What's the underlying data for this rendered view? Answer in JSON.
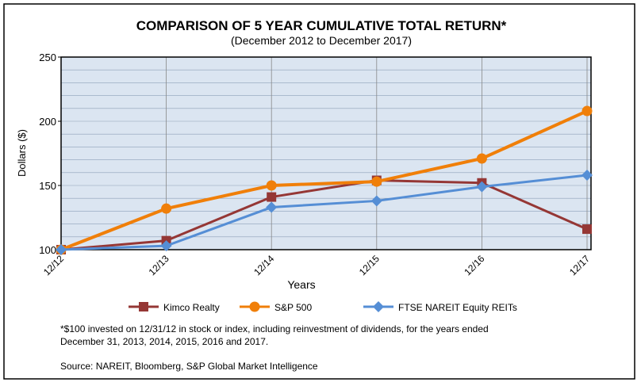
{
  "chart_data": {
    "type": "line",
    "title": "COMPARISON OF 5 YEAR CUMULATIVE TOTAL  RETURN*",
    "subtitle": "(December 2012 to December 2017)",
    "xlabel": "Years",
    "ylabel": "Dollars ($)",
    "ylim": [
      100,
      250
    ],
    "yticks": [
      "250",
      "200",
      "150",
      "100"
    ],
    "categories": [
      "12/12",
      "12/13",
      "12/14",
      "12/15",
      "12/16",
      "12/17"
    ],
    "grid": true,
    "legend_position": "bottom",
    "series": [
      {
        "name": "Kimco Realty",
        "color": "#953735",
        "marker": "square",
        "values": [
          100,
          107,
          141,
          154,
          152,
          116
        ]
      },
      {
        "name": "S&P 500",
        "color": "#f07f09",
        "marker": "circle",
        "values": [
          100,
          132,
          150,
          153,
          171,
          208
        ]
      },
      {
        "name": "FTSE NAREIT Equity REITs",
        "color": "#558ed5",
        "marker": "diamond",
        "values": [
          100,
          103,
          133,
          138,
          149,
          158
        ]
      }
    ]
  },
  "footnote": {
    "line1": "*$100 invested on 12/31/12 in stock or index, including reinvestment of dividends, for the years ended",
    "line2": "December 31, 2013, 2014, 2015, 2016 and 2017.",
    "source": "Source: NAREIT, Bloomberg, S&P Global Market Intelligence"
  }
}
